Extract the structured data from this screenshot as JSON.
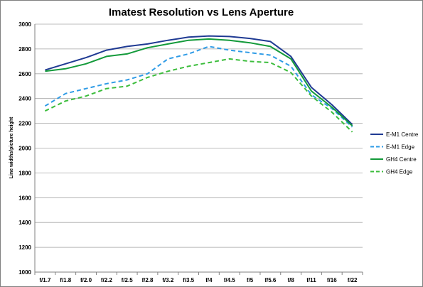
{
  "chart_data": {
    "type": "line",
    "title": "Imatest Resolution vs Lens Aperture",
    "xlabel": "",
    "ylabel": "Line widths/picture height",
    "ylim": [
      1000,
      3000
    ],
    "yticks": [
      "1000",
      "1200",
      "1400",
      "1600",
      "1800",
      "2000",
      "2200",
      "2400",
      "2600",
      "2800",
      "3000"
    ],
    "grid": true,
    "legend_position": "right",
    "categories": [
      "f/1.7",
      "f/1.8",
      "f/2.0",
      "f/2.2",
      "f/2.5",
      "f/2.8",
      "f/3.2",
      "f/3.5",
      "f/4",
      "f/4.5",
      "f/5",
      "f/5.6",
      "f/8",
      "f/11",
      "f/16",
      "f/22"
    ],
    "series": [
      {
        "name": "E-M1 Centre",
        "color": "#1f3a93",
        "dash": "solid",
        "values": [
          2630,
          2680,
          2730,
          2790,
          2820,
          2840,
          2870,
          2895,
          2905,
          2900,
          2885,
          2860,
          2740,
          2490,
          2350,
          2190
        ]
      },
      {
        "name": "E-M1 Edge",
        "color": "#2e9be6",
        "dash": "dashed",
        "values": [
          2340,
          2440,
          2480,
          2520,
          2550,
          2600,
          2720,
          2760,
          2820,
          2790,
          2770,
          2750,
          2660,
          2430,
          2320,
          2170
        ]
      },
      {
        "name": "GH4 Centre",
        "color": "#139a3a",
        "dash": "solid",
        "values": [
          2620,
          2640,
          2680,
          2740,
          2760,
          2810,
          2840,
          2870,
          2880,
          2870,
          2850,
          2820,
          2720,
          2460,
          2330,
          2180
        ]
      },
      {
        "name": "GH4 Edge",
        "color": "#3cbd3c",
        "dash": "dashed",
        "values": [
          2300,
          2380,
          2420,
          2480,
          2500,
          2570,
          2620,
          2660,
          2690,
          2720,
          2700,
          2690,
          2610,
          2420,
          2290,
          2130
        ]
      }
    ]
  }
}
